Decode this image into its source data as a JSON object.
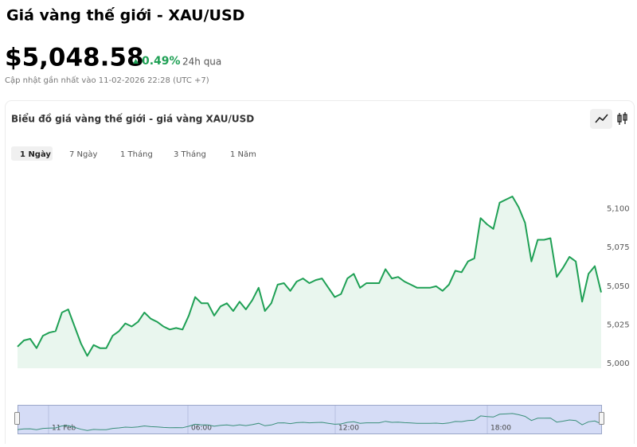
{
  "header": {
    "title": "Giá vàng thế giới - XAU/USD",
    "price": "$5,048.58",
    "change": "0.49%",
    "change_period": "24h qua",
    "updated": "Cập nhật gần nhất vào 11-02-2026 22:28 (UTC +7)"
  },
  "card": {
    "title": "Biểu đồ giá vàng thế giới - giá vàng XAU/USD",
    "tabs": [
      "1 Ngày",
      "7 Ngày",
      "1 Tháng",
      "3 Tháng",
      "1 Năm"
    ]
  },
  "chart_data": {
    "type": "line",
    "color": "#1fa055",
    "values": [
      5011,
      5015,
      5016,
      5010,
      5018,
      5020,
      5021,
      5033,
      5035,
      5024,
      5013,
      5005,
      5012,
      5010,
      5010,
      5018,
      5021,
      5026,
      5024,
      5027,
      5033,
      5029,
      5027,
      5024,
      5022,
      5023,
      5022,
      5031,
      5043,
      5039,
      5039,
      5031,
      5037,
      5039,
      5034,
      5040,
      5035,
      5041,
      5049,
      5034,
      5039,
      5051,
      5052,
      5047,
      5053,
      5055,
      5052,
      5054,
      5055,
      5049,
      5043,
      5045,
      5055,
      5058,
      5049,
      5052,
      5052,
      5052,
      5061,
      5055,
      5056,
      5053,
      5051,
      5049,
      5049,
      5049,
      5050,
      5047,
      5051,
      5060,
      5059,
      5066,
      5068,
      5094,
      5090,
      5087,
      5104,
      5106,
      5108,
      5101,
      5091,
      5066,
      5080,
      5080,
      5081,
      5056,
      5062,
      5069,
      5066,
      5040,
      5058,
      5063,
      5046
    ],
    "ylim": [
      4997,
      5127
    ],
    "yticks": [
      {
        "value": 5000,
        "label": "5,000"
      },
      {
        "value": 5025,
        "label": "5,025"
      },
      {
        "value": 5050,
        "label": "5,050"
      },
      {
        "value": 5075,
        "label": "5,075"
      },
      {
        "value": 5100,
        "label": "5,100"
      }
    ],
    "navigator_labels": [
      "11 Feb",
      "06:00",
      "12:00",
      "18:00"
    ]
  }
}
